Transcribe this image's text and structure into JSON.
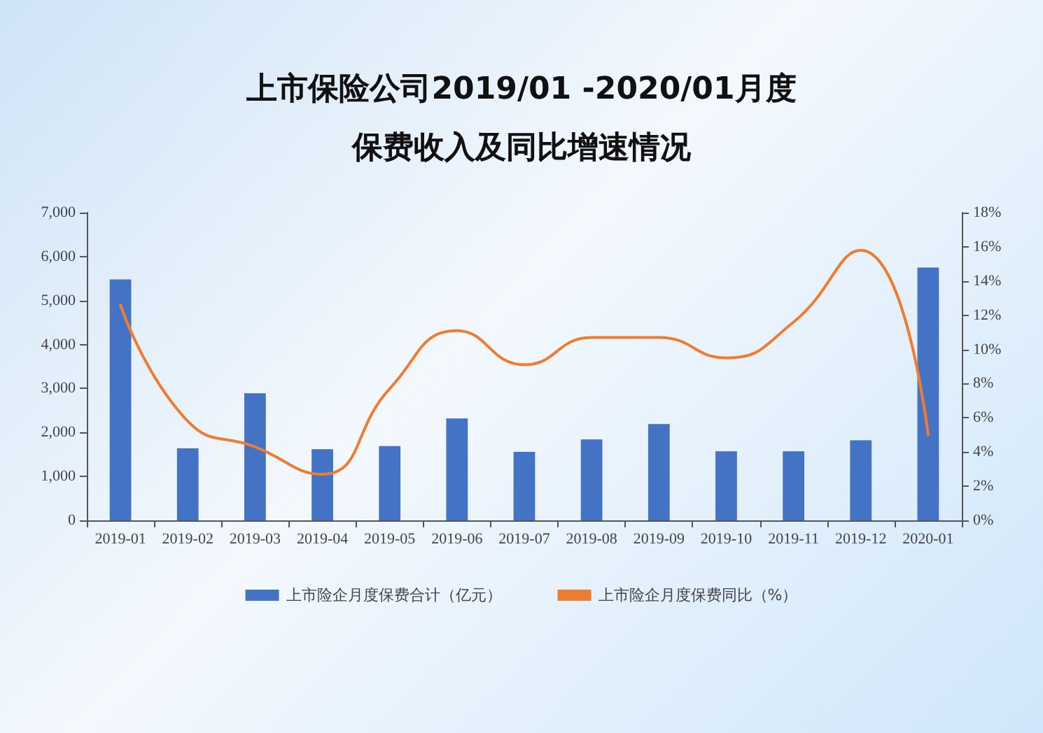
{
  "chart_data": {
    "type": "bar",
    "title": "上市保险公司2019/01 -2020/01月度保费收入及同比增速情况",
    "categories": [
      "2019-01",
      "2019-02",
      "2019-03",
      "2019-04",
      "2019-05",
      "2019-06",
      "2019-07",
      "2019-08",
      "2019-09",
      "2019-10",
      "2019-11",
      "2019-12",
      "2020-01"
    ],
    "series": [
      {
        "name": "上市险企月度保费合计（亿元）",
        "color": "#4472c4",
        "values": [
          5480,
          1640,
          2890,
          1620,
          1690,
          2320,
          1560,
          1840,
          2190,
          1570,
          1570,
          1820,
          5750
        ]
      },
      {
        "name": "上市险企月度保费同比（%）",
        "type": "line",
        "axis": "y2",
        "color": "#ed7d31",
        "values": [
          12.6,
          5.8,
          4.3,
          2.7,
          7.7,
          11.1,
          9.1,
          10.7,
          10.7,
          9.5,
          11.6,
          15.8,
          5.0
        ]
      }
    ],
    "ylim": [
      0,
      7000
    ],
    "yticks": [
      {
        "value": 0,
        "label": "0"
      },
      {
        "value": 1000,
        "label": "1,000"
      },
      {
        "value": 2000,
        "label": "2,000"
      },
      {
        "value": 3000,
        "label": "3,000"
      },
      {
        "value": 4000,
        "label": "4,000"
      },
      {
        "value": 5000,
        "label": "5,000"
      },
      {
        "value": 6000,
        "label": "6,000"
      },
      {
        "value": 7000,
        "label": "7,000"
      }
    ],
    "y2lim": [
      0,
      18
    ],
    "y2ticks": [
      {
        "value": 0,
        "label": "0%"
      },
      {
        "value": 2,
        "label": "2%"
      },
      {
        "value": 4,
        "label": "4%"
      },
      {
        "value": 6,
        "label": "6%"
      },
      {
        "value": 8,
        "label": "8%"
      },
      {
        "value": 10,
        "label": "10%"
      },
      {
        "value": 12,
        "label": "12%"
      },
      {
        "value": 14,
        "label": "14%"
      },
      {
        "value": 16,
        "label": "16%"
      },
      {
        "value": 18,
        "label": "18%"
      }
    ],
    "grid": false,
    "legend": "bottom",
    "marker": "none",
    "line_style": "solid"
  }
}
